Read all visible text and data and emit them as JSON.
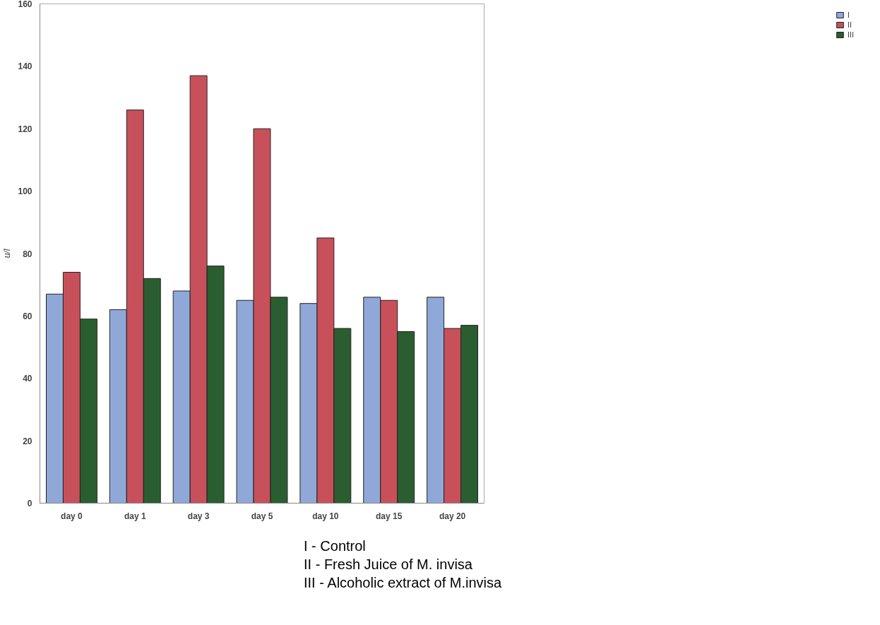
{
  "chart_data": {
    "type": "bar",
    "ylabel": "u/l",
    "categories": [
      "day 0",
      "day 1",
      "day 3",
      "day 5",
      "day 10",
      "day 15",
      "day 20"
    ],
    "series": [
      {
        "name": "I",
        "color": "#8fa8d8",
        "values": [
          67,
          62,
          68,
          65,
          64,
          66,
          66
        ]
      },
      {
        "name": "II",
        "color": "#c8505a",
        "values": [
          74,
          126,
          137,
          120,
          85,
          65,
          56
        ]
      },
      {
        "name": "III",
        "color": "#2a5e30",
        "values": [
          59,
          72,
          76,
          66,
          56,
          55,
          57
        ]
      }
    ],
    "ylim": [
      0,
      160
    ],
    "yticks": [
      0,
      20,
      40,
      60,
      80,
      100,
      120,
      140,
      160
    ],
    "grid": false,
    "legend": "right",
    "annotations": [
      "I - Control",
      "II - Fresh Juice of M. invisa",
      "III - Alcoholic extract of M.invisa"
    ]
  }
}
